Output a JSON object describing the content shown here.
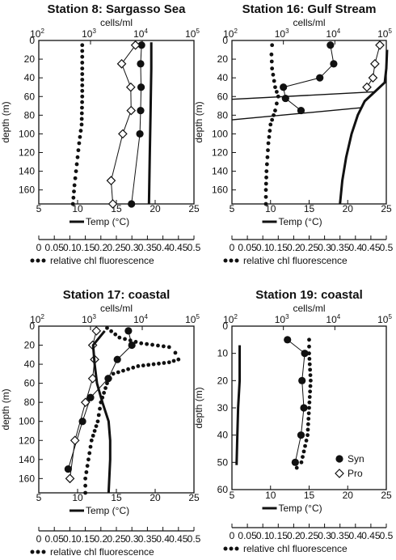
{
  "chart_data": [
    {
      "type": "scatter",
      "title": "Station 8: Sargasso Sea",
      "top_axis_label": "cells/ml",
      "top_ticks": [
        {
          "base": "10",
          "exp": "2"
        },
        {
          "base": "10",
          "exp": "3"
        },
        {
          "base": "10",
          "exp": "4"
        },
        {
          "base": "10",
          "exp": "5"
        }
      ],
      "ylabel": "depth (m)",
      "yticks": [
        "0",
        "20",
        "40",
        "60",
        "80",
        "100",
        "120",
        "140",
        "160"
      ],
      "ylim": [
        0,
        175
      ],
      "temp_axis_label": "Temp (°C)",
      "temp_ticks": [
        "5",
        "10",
        "15",
        "20",
        "25"
      ],
      "chl_axis_label": "relative chl fluorescence",
      "chl_ticks": [
        "0",
        "0.05",
        "0.1",
        "0.15",
        "0.2",
        "0.25",
        "0.3",
        "0.35",
        "0.4",
        "0.45",
        "0.5"
      ],
      "series": [
        {
          "name": "Syn",
          "points": [
            [
              9700,
              5
            ],
            [
              9300,
              25
            ],
            [
              9500,
              50
            ],
            [
              9300,
              75
            ],
            [
              9000,
              100
            ],
            [
              6200,
              175
            ]
          ]
        },
        {
          "name": "Pro",
          "points": [
            [
              7400,
              5
            ],
            [
              4000,
              25
            ],
            [
              6000,
              50
            ],
            [
              6100,
              75
            ],
            [
              4200,
              100
            ],
            [
              2500,
              150
            ],
            [
              2700,
              175
            ]
          ]
        },
        {
          "name": "Temp",
          "points": [
            [
              19.5,
              2
            ],
            [
              19.5,
              30
            ],
            [
              19.4,
              80
            ],
            [
              19.3,
              125
            ],
            [
              19.2,
              175
            ]
          ]
        },
        {
          "name": "relative chl fluorescence",
          "points": [
            [
              0.14,
              5
            ],
            [
              0.14,
              30
            ],
            [
              0.14,
              60
            ],
            [
              0.138,
              90
            ],
            [
              0.13,
              110
            ],
            [
              0.125,
              125
            ],
            [
              0.12,
              140
            ],
            [
              0.115,
              155
            ],
            [
              0.11,
              175
            ]
          ]
        }
      ]
    },
    {
      "type": "scatter",
      "title": "Station 16: Gulf Stream",
      "top_axis_label": "cells/ml",
      "top_ticks": [
        {
          "base": "10",
          "exp": "2"
        },
        {
          "base": "10",
          "exp": "3"
        },
        {
          "base": "10",
          "exp": "4"
        },
        {
          "base": "10",
          "exp": "5"
        }
      ],
      "ylabel": "depth (m)",
      "yticks": [
        "0",
        "20",
        "40",
        "60",
        "80",
        "100",
        "120",
        "140",
        "160"
      ],
      "ylim": [
        0,
        175
      ],
      "temp_axis_label": "Temp (°C)",
      "temp_ticks": [
        "5",
        "10",
        "15",
        "20",
        "25"
      ],
      "chl_axis_label": "relative chl fluorescence",
      "chl_ticks": [
        "0",
        "0.05",
        "0.1",
        "0.15",
        "0.2",
        "0.25",
        "0.3",
        "0.35",
        "0.4",
        "0.45",
        "0.5"
      ],
      "series": [
        {
          "name": "Syn",
          "points": [
            [
              8200,
              5
            ],
            [
              9500,
              25
            ],
            [
              5100,
              40
            ],
            [
              1000,
              50
            ],
            [
              1100,
              62
            ],
            [
              2200,
              75
            ]
          ]
        },
        {
          "name": "Pro",
          "points": [
            [
              75000,
              5
            ],
            [
              60000,
              25
            ],
            [
              55000,
              40
            ],
            [
              42000,
              50
            ]
          ]
        },
        {
          "name": "Temp",
          "points": [
            [
              25.1,
              10
            ],
            [
              25.0,
              30
            ],
            [
              24.8,
              45
            ],
            [
              23.5,
              55
            ],
            [
              22.2,
              65
            ],
            [
              21.3,
              80
            ],
            [
              20.5,
              100
            ],
            [
              19.8,
              125
            ],
            [
              19.3,
              150
            ],
            [
              19.0,
              175
            ]
          ]
        },
        {
          "name": "Temp (thermocline)",
          "points": [
            [
              23.5,
              55
            ],
            [
              5,
              63
            ]
          ]
        },
        {
          "name": "Temp (thermocline 2)",
          "points": [
            [
              21.8,
              72
            ],
            [
              5,
              85
            ]
          ]
        },
        {
          "name": "relative chl fluorescence",
          "points": [
            [
              0.13,
              5
            ],
            [
              0.128,
              15
            ],
            [
              0.13,
              30
            ],
            [
              0.14,
              50
            ],
            [
              0.15,
              60
            ],
            [
              0.14,
              75
            ],
            [
              0.125,
              90
            ],
            [
              0.118,
              110
            ],
            [
              0.115,
              125
            ],
            [
              0.112,
              140
            ],
            [
              0.11,
              160
            ],
            [
              0.11,
              175
            ]
          ]
        }
      ]
    },
    {
      "type": "scatter",
      "title": "Station 17: coastal",
      "top_axis_label": "cells/ml",
      "top_ticks": [
        {
          "base": "10",
          "exp": "2"
        },
        {
          "base": "10",
          "exp": "3"
        },
        {
          "base": "10",
          "exp": "4"
        },
        {
          "base": "10",
          "exp": "5"
        }
      ],
      "ylabel": "depth (m)",
      "yticks": [
        "0",
        "20",
        "40",
        "60",
        "80",
        "100",
        "120",
        "140",
        "160"
      ],
      "ylim": [
        0,
        175
      ],
      "temp_axis_label": "Temp (°C)",
      "temp_ticks": [
        "5",
        "10",
        "15",
        "20",
        "25"
      ],
      "chl_axis_label": "relative chl fluorescence",
      "chl_ticks": [
        "0",
        "0.05",
        "0.1",
        "0.15",
        "0.2",
        "0.25",
        "0.3",
        "0.35",
        "0.4",
        "0.45",
        "0.5"
      ],
      "series": [
        {
          "name": "Syn",
          "points": [
            [
              5400,
              5
            ],
            [
              6300,
              20
            ],
            [
              3300,
              35
            ],
            [
              2200,
              55
            ],
            [
              1000,
              75
            ],
            [
              700,
              100
            ],
            [
              370,
              150
            ]
          ]
        },
        {
          "name": "Pro",
          "points": [
            [
              1300,
              5
            ],
            [
              1100,
              20
            ],
            [
              1200,
              35
            ],
            [
              1100,
              55
            ],
            [
              800,
              80
            ],
            [
              500,
              120
            ],
            [
              400,
              160
            ]
          ]
        },
        {
          "name": "Temp",
          "points": [
            [
              13.5,
              5
            ],
            [
              12,
              20
            ],
            [
              12.2,
              40
            ],
            [
              12.5,
              60
            ],
            [
              13.2,
              80
            ],
            [
              14,
              100
            ],
            [
              14.2,
              120
            ],
            [
              14.2,
              140
            ],
            [
              14,
              175
            ]
          ]
        },
        {
          "name": "relative chl fluorescence",
          "points": [
            [
              0.22,
              2
            ],
            [
              0.26,
              12
            ],
            [
              0.33,
              18
            ],
            [
              0.42,
              22
            ],
            [
              0.44,
              28
            ],
            [
              0.45,
              35
            ],
            [
              0.42,
              38
            ],
            [
              0.32,
              42
            ],
            [
              0.24,
              50
            ],
            [
              0.22,
              60
            ],
            [
              0.2,
              80
            ],
            [
              0.19,
              100
            ],
            [
              0.17,
              120
            ],
            [
              0.16,
              140
            ],
            [
              0.15,
              160
            ],
            [
              0.15,
              175
            ]
          ]
        }
      ]
    },
    {
      "type": "scatter",
      "title": "Station 19: coastal",
      "top_axis_label": "cells/ml",
      "top_ticks": [
        {
          "base": "10",
          "exp": "2"
        },
        {
          "base": "10",
          "exp": "3"
        },
        {
          "base": "10",
          "exp": "4"
        },
        {
          "base": "10",
          "exp": "5"
        }
      ],
      "ylabel": "depth (m)",
      "yticks": [
        "0",
        "10",
        "20",
        "30",
        "40",
        "50",
        "60"
      ],
      "ylim": [
        0,
        60
      ],
      "temp_axis_label": "Temp (°C)",
      "temp_ticks": [
        "5",
        "10",
        "15",
        "20",
        "25"
      ],
      "chl_axis_label": "relative chl fluorescence",
      "chl_ticks": [
        "0",
        "0.05",
        "0.1",
        "0.15",
        "0.2",
        "0.25",
        "0.3",
        "0.35",
        "0.4",
        "0.45",
        "0.5"
      ],
      "legend": {
        "placement": "bottom-right",
        "entries": [
          {
            "label": "Syn",
            "marker": "filled-circle"
          },
          {
            "label": "Pro",
            "marker": "open-diamond"
          }
        ]
      },
      "series": [
        {
          "name": "Syn",
          "points": [
            [
              1200,
              5
            ],
            [
              2600,
              10
            ],
            [
              2300,
              20
            ],
            [
              2500,
              30
            ],
            [
              2200,
              40
            ],
            [
              1700,
              50
            ]
          ]
        },
        {
          "name": "Temp",
          "points": [
            [
              6,
              7
            ],
            [
              6,
              20
            ],
            [
              5.8,
              30
            ],
            [
              5.7,
              40
            ],
            [
              5.6,
              51
            ]
          ]
        },
        {
          "name": "relative chl fluorescence",
          "points": [
            [
              0.25,
              5
            ],
            [
              0.25,
              10
            ],
            [
              0.255,
              20
            ],
            [
              0.25,
              30
            ],
            [
              0.245,
              40
            ],
            [
              0.225,
              50
            ],
            [
              0.21,
              52
            ]
          ]
        }
      ]
    }
  ]
}
